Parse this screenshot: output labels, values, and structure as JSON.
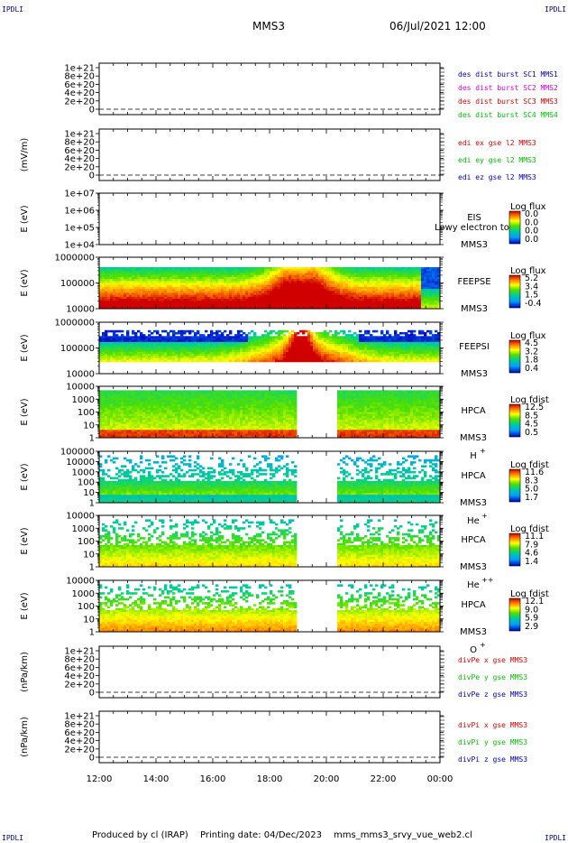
{
  "header": {
    "title": "MMS3",
    "date": "06/Jul/2021 12:00",
    "corner_label": "IPDLI"
  },
  "footer": {
    "produced_by": "Produced by cl (IRAP)",
    "printing_date": "Printing date: 04/Dec/2023",
    "filename": "mms_mms3_srvy_vue_web2.cl"
  },
  "colors": {
    "red": "#e00000",
    "green": "#00c000",
    "blue": "#0000c0",
    "magenta": "#e000e0"
  },
  "chart_data": {
    "type": "heatmap",
    "x_ticks": [
      "12:00",
      "14:00",
      "16:00",
      "18:00",
      "20:00",
      "22:00",
      "00:00"
    ],
    "panels": [
      {
        "id": "des-dist",
        "type": "line",
        "yticks": [
          "1e+21",
          "8e+20",
          "6e+20",
          "4e+20",
          "2e+20",
          "0"
        ],
        "ylabel": "",
        "legend": [
          {
            "text": "des dist burst SC1 MMS1",
            "color": "#0000c0"
          },
          {
            "text": "des dist burst SC2 MMS2",
            "color": "#e000e0"
          },
          {
            "text": "des dist burst SC3 MMS3",
            "color": "#e00000"
          },
          {
            "text": "des dist burst SC4 MMS4",
            "color": "#00c000"
          }
        ]
      },
      {
        "id": "edi",
        "type": "line",
        "yticks": [
          "1e+21",
          "8e+20",
          "6e+20",
          "4e+20",
          "2e+20",
          "0"
        ],
        "ylabel": "(mV/m)",
        "legend": [
          {
            "text": "edi ex gse l2 MMS3",
            "color": "#e00000"
          },
          {
            "text": "edi ey gse l2 MMS3",
            "color": "#00c000"
          },
          {
            "text": "edi ez gse l2 MMS3",
            "color": "#0000c0"
          }
        ]
      },
      {
        "id": "eis",
        "type": "heatmap",
        "yticks": [
          "1e+07",
          "1e+06",
          "1e+05",
          "1e+04"
        ],
        "ylabel": "E (eV)",
        "labels": [
          "EIS",
          "MMS3"
        ],
        "overlay": "Lowy electron to",
        "cb_title": "Log flux",
        "cb_values": [
          "0.0",
          "0.0",
          "0.0",
          "0.0"
        ]
      },
      {
        "id": "feepse",
        "type": "heatmap",
        "yticks": [
          "1000000",
          "100000",
          "10000"
        ],
        "ylabel": "E (eV)",
        "labels": [
          "FEEPSE",
          "MMS3"
        ],
        "cb_title": "Log flux",
        "cb_values": [
          "5.2",
          "3.4",
          "1.5",
          "-0.4"
        ]
      },
      {
        "id": "feepsi",
        "type": "heatmap",
        "yticks": [
          "1000000",
          "100000",
          "10000"
        ],
        "ylabel": "E (eV)",
        "labels": [
          "FEEPSI",
          "MMS3"
        ],
        "cb_title": "Log flux",
        "cb_values": [
          "4.5",
          "3.2",
          "1.8",
          "0.4"
        ]
      },
      {
        "id": "hpca-h",
        "type": "heatmap",
        "yticks": [
          "10000",
          "1000",
          "100",
          "10",
          "1"
        ],
        "ylabel": "E (eV)",
        "labels": [
          "HPCA",
          "MMS3"
        ],
        "species": "H",
        "sup": "+",
        "cb_title": "Log fdist",
        "cb_values": [
          "12.5",
          "8.5",
          "4.5",
          "0.5"
        ]
      },
      {
        "id": "hpca-he",
        "type": "heatmap",
        "yticks": [
          "100000",
          "10000",
          "1000",
          "100",
          "10",
          "1"
        ],
        "ylabel": "E (eV)",
        "labels": [
          "HPCA",
          "MMS3"
        ],
        "species": "He",
        "sup": "+",
        "cb_title": "Log fdist",
        "cb_values": [
          "11.6",
          "8.3",
          "5.0",
          "1.7"
        ]
      },
      {
        "id": "hpca-hepp",
        "type": "heatmap",
        "yticks": [
          "10000",
          "1000",
          "100",
          "10",
          "1"
        ],
        "ylabel": "E (eV)",
        "labels": [
          "HPCA",
          "MMS3"
        ],
        "species": "He",
        "sup": "++",
        "cb_title": "Log fdist",
        "cb_values": [
          "11.1",
          "7.9",
          "4.6",
          "1.4"
        ]
      },
      {
        "id": "hpca-o",
        "type": "heatmap",
        "yticks": [
          "10000",
          "1000",
          "100",
          "10",
          "1"
        ],
        "ylabel": "E (eV)",
        "labels": [
          "HPCA",
          "MMS3"
        ],
        "species": "O",
        "sup": "+",
        "cb_title": "Log fdist",
        "cb_values": [
          "12.1",
          "9.0",
          "5.9",
          "2.9"
        ]
      },
      {
        "id": "divpe",
        "type": "line",
        "yticks": [
          "1e+21",
          "8e+20",
          "6e+20",
          "4e+20",
          "2e+20",
          "0"
        ],
        "ylabel": "(nPa/km)",
        "legend": [
          {
            "text": "divPe x gse MMS3",
            "color": "#e00000"
          },
          {
            "text": "divPe y gse MMS3",
            "color": "#00c000"
          },
          {
            "text": "divPe z gse MMS3",
            "color": "#0000c0"
          }
        ]
      },
      {
        "id": "divpi",
        "type": "line",
        "yticks": [
          "1e+21",
          "8e+20",
          "6e+20",
          "4e+20",
          "2e+20",
          "0"
        ],
        "ylabel": "(nPa/km)",
        "legend": [
          {
            "text": "divPi x gse MMS3",
            "color": "#e00000"
          },
          {
            "text": "divPi y gse MMS3",
            "color": "#00c000"
          },
          {
            "text": "divPi z gse MMS3",
            "color": "#0000c0"
          }
        ]
      }
    ]
  }
}
